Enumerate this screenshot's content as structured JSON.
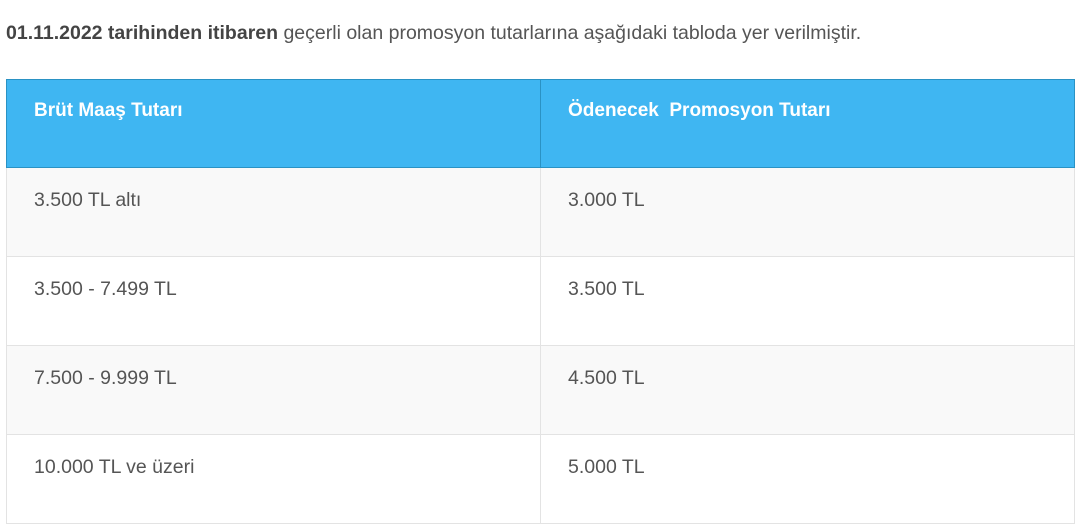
{
  "intro": {
    "bold": "01.11.2022 tarihinden itibaren",
    "rest": " geçerli olan promosyon tutarlarına aşağıdaki tabloda yer verilmiştir."
  },
  "table": {
    "headers": [
      "Brüt Maaş Tutarı",
      "Ödenecek  Promosyon Tutarı"
    ],
    "rows": [
      [
        "3.500 TL altı",
        "3.000 TL"
      ],
      [
        "3.500 - 7.499 TL",
        "3.500 TL"
      ],
      [
        "7.500 - 9.999 TL",
        "4.500 TL"
      ],
      [
        "10.000 TL ve üzeri",
        "5.000 TL"
      ]
    ],
    "header_color": "#3fb6f2"
  }
}
